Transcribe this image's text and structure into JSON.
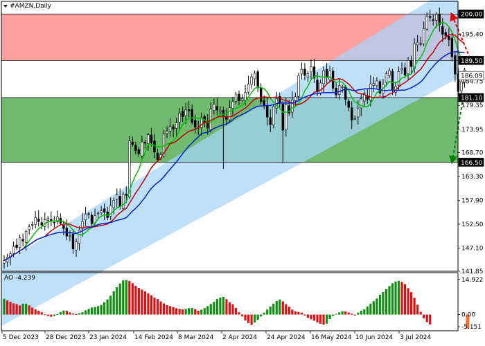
{
  "chart_data": [
    {
      "type": "candlestick",
      "title": "#AMZN,Daily",
      "ylim": [
        141.85,
        202.85
      ],
      "y_ticks": [
        "195.40",
        "184.75",
        "179.35",
        "173.95",
        "168.70",
        "163.30",
        "157.90",
        "152.50",
        "147.10",
        "141.85"
      ],
      "x_ticks": [
        "5 Dec 2023",
        "28 Dec 2023",
        "23 Jan 2024",
        "14 Feb 2024",
        "8 Mar 2024",
        "2 Apr 2024",
        "24 Apr 2024",
        "16 May 2024",
        "10 Jun 2024",
        "3 Jul 2024"
      ],
      "levels": [
        {
          "value": 200.0,
          "label": "200.00"
        },
        {
          "value": 189.5,
          "label": "189.50"
        },
        {
          "value": 186.09,
          "label": "186.09"
        },
        {
          "value": 181.1,
          "label": "181.10"
        },
        {
          "value": 166.5,
          "label": "166.50"
        }
      ],
      "zones": [
        {
          "from": 189.5,
          "to": 200.0,
          "color": "#ffa0a0"
        },
        {
          "from": 166.5,
          "to": 181.1,
          "color": "#6fba6f"
        }
      ],
      "channel_color": "#a6d4fa",
      "ma_colors": {
        "fast": "#00c000",
        "mid": "#c00000",
        "slow": "#0022cc"
      },
      "arrows": [
        {
          "direction": "up",
          "target": 200.0,
          "color": "#e00000"
        },
        {
          "direction": "down",
          "target": 166.5,
          "color": "#008000"
        }
      ],
      "close": [
        144.3,
        145.0,
        145.8,
        147.5,
        147.2,
        149.4,
        148.7,
        150.8,
        151.9,
        152.4,
        154.0,
        153.1,
        152.3,
        153.5,
        153.8,
        153.2,
        152.8,
        154.1,
        152.7,
        151.5,
        149.8,
        149.9,
        146.9,
        148.5,
        151.2,
        153.1,
        154.8,
        154.7,
        152.6,
        154.4,
        155.0,
        155.5,
        155.2,
        154.0,
        156.7,
        157.9,
        159.1,
        156.5,
        159.3,
        159.0,
        171.3,
        170.5,
        169.1,
        168.4,
        171.1,
        170.8,
        172.7,
        170.9,
        168.8,
        167.1,
        168.2,
        172.9,
        173.5,
        174.6,
        174.0,
        175.4,
        177.6,
        176.8,
        178.3,
        178.1,
        175.5,
        174.4,
        174.3,
        176.6,
        175.4,
        174.2,
        178.5,
        179.6,
        178.3,
        178.1,
        177.0,
        176.2,
        178.8,
        180.2,
        181.9,
        180.4,
        180.9,
        182.3,
        184.2,
        185.8,
        186.6,
        183.6,
        180.2,
        179.2,
        176.7,
        175.0,
        179.1,
        180.9,
        179.8,
        173.7,
        179.5,
        177.6,
        180.6,
        181.3,
        186.1,
        187.5,
        186.1,
        186.5,
        188.1,
        185.5,
        182.4,
        184.4,
        187.2,
        185.6,
        187.1,
        183.2,
        181.7,
        183.8,
        183.6,
        180.7,
        178.9,
        176.0,
        176.4,
        178.5,
        180.8,
        182.0,
        180.7,
        184.2,
        184.3,
        184.9,
        182.1,
        184.1,
        186.5,
        187.2,
        182.7,
        183.6,
        187.0,
        187.6,
        186.2,
        189.5,
        188.1,
        193.3,
        193.6,
        193.3,
        196.7,
        199.5,
        199.2,
        198.5,
        200.0,
        197.6,
        195.4,
        195.1,
        194.2,
        190.3,
        186.4,
        182.5,
        184.7,
        187.3
      ],
      "ao": {
        "label": "AO -4.239",
        "y_ticks": [
          "14.922",
          "0.00",
          "-5.151"
        ],
        "values": [
          6.7,
          6.0,
          5.4,
          4.8,
          4.4,
          3.9,
          4.6,
          4.6,
          3.9,
          2.9,
          2.2,
          1.6,
          1.0,
          0.1,
          -0.6,
          -0.9,
          -0.6,
          0.2,
          1.0,
          1.7,
          1.6,
          0.9,
          0.4,
          0.2,
          0.6,
          1.0,
          1.8,
          2.4,
          3.0,
          3.2,
          3.6,
          4.1,
          5.2,
          6.4,
          8.0,
          9.9,
          11.6,
          13.2,
          14.5,
          14.7,
          14.3,
          13.3,
          12.2,
          11.3,
          10.6,
          9.8,
          9.0,
          8.2,
          7.2,
          6.6,
          5.6,
          4.7,
          4.0,
          3.6,
          3.2,
          2.7,
          2.4,
          2.2,
          2.4,
          2.7,
          2.8,
          2.3,
          1.6,
          2.1,
          2.7,
          3.6,
          4.5,
          5.4,
          6.6,
          7.2,
          7.5,
          6.5,
          5.2,
          4.4,
          2.8,
          1.0,
          -0.8,
          -2.5,
          -3.6,
          -4.4,
          -3.4,
          -2.2,
          -0.8,
          0.8,
          2.1,
          3.4,
          4.6,
          5.8,
          6.4,
          5.6,
          4.4,
          3.3,
          2.1,
          1.3,
          1.1,
          0.8,
          -0.4,
          -1.4,
          -2.0,
          -2.6,
          -3.3,
          -3.9,
          -4.3,
          -3.9,
          -1.9,
          -0.6,
          0.3,
          0.9,
          1.4,
          1.3,
          0.9,
          0.4,
          -0.4,
          0.8,
          1.6,
          2.2,
          3.4,
          4.6,
          5.7,
          6.8,
          8.4,
          9.6,
          10.8,
          12.1,
          13.3,
          14.0,
          14.3,
          13.8,
          12.9,
          11.2,
          9.5,
          7.1,
          4.2,
          1.2,
          -1.6,
          -3.2,
          -4.2
        ]
      }
    }
  ]
}
